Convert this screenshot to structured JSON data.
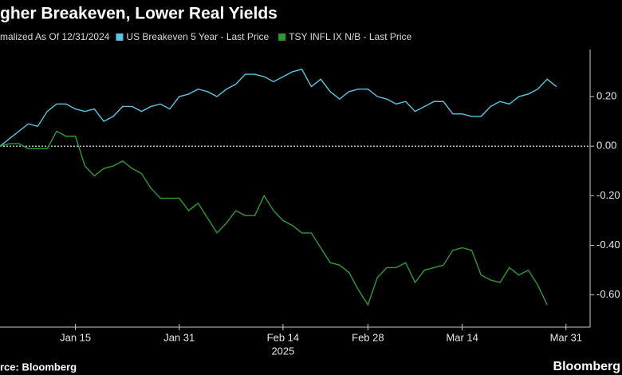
{
  "chart_data": {
    "type": "line",
    "title": "gher Breakeven, Lower Real Yields",
    "subtitle": "malized As Of 12/31/2024",
    "xlabel": "2025",
    "source": "rce: Bloomberg",
    "brand": "Bloomberg",
    "categories": [
      null,
      null,
      null,
      null,
      null,
      null,
      null,
      null,
      "Jan 15",
      null,
      null,
      null,
      null,
      null,
      null,
      null,
      null,
      null,
      null,
      "Jan 31",
      null,
      null,
      null,
      null,
      null,
      null,
      null,
      null,
      null,
      null,
      "Feb 14",
      null,
      null,
      null,
      null,
      null,
      null,
      null,
      null,
      "Feb 28",
      null,
      null,
      null,
      null,
      null,
      null,
      null,
      null,
      null,
      "Mar 14",
      null,
      null,
      null,
      null,
      null,
      null,
      null,
      null,
      null,
      null,
      "Mar 31"
    ],
    "series": [
      {
        "name": "US Breakeven 5 Year - Last Price",
        "color": "#5cc3e0",
        "values": [
          0.0,
          0.03,
          0.06,
          0.09,
          0.08,
          0.14,
          0.17,
          0.17,
          0.15,
          0.14,
          0.15,
          0.1,
          0.12,
          0.16,
          0.16,
          0.14,
          0.16,
          0.17,
          0.15,
          0.2,
          0.21,
          0.23,
          0.22,
          0.2,
          0.23,
          0.25,
          0.29,
          0.29,
          0.28,
          0.26,
          0.28,
          0.3,
          0.31,
          0.24,
          0.27,
          0.22,
          0.19,
          0.22,
          0.23,
          0.23,
          0.2,
          0.19,
          0.17,
          0.18,
          0.14,
          0.16,
          0.18,
          0.18,
          0.13,
          0.13,
          0.12,
          0.12,
          0.16,
          0.18,
          0.17,
          0.2,
          0.21,
          0.23,
          0.27,
          0.24,
          null
        ]
      },
      {
        "name": "TSY INFL IX N/B - Last Price",
        "color": "#2f9a35",
        "values": [
          0.0,
          0.01,
          0.01,
          -0.01,
          -0.01,
          -0.01,
          0.06,
          0.04,
          0.04,
          -0.08,
          -0.12,
          -0.09,
          -0.08,
          -0.06,
          -0.09,
          -0.11,
          -0.17,
          -0.21,
          -0.21,
          -0.21,
          -0.26,
          -0.23,
          -0.29,
          -0.35,
          -0.31,
          -0.26,
          -0.28,
          -0.28,
          -0.2,
          -0.26,
          -0.3,
          -0.32,
          -0.35,
          -0.35,
          -0.41,
          -0.47,
          -0.48,
          -0.51,
          -0.58,
          -0.64,
          -0.53,
          -0.49,
          -0.49,
          -0.47,
          -0.55,
          -0.5,
          -0.49,
          -0.48,
          -0.42,
          -0.41,
          -0.42,
          -0.52,
          -0.54,
          -0.55,
          -0.49,
          -0.52,
          -0.5,
          -0.56,
          -0.64,
          null,
          null
        ]
      }
    ],
    "ylim": [
      -0.73,
      0.39
    ],
    "yticks": [
      {
        "value": 0.2,
        "label": "0.20"
      },
      {
        "value": 0,
        "label": "0.00"
      },
      {
        "value": -0.2,
        "label": "-0.20"
      },
      {
        "value": -0.4,
        "label": "-0.40"
      },
      {
        "value": -0.6,
        "label": "-0.60"
      }
    ],
    "reference_line": 0
  }
}
